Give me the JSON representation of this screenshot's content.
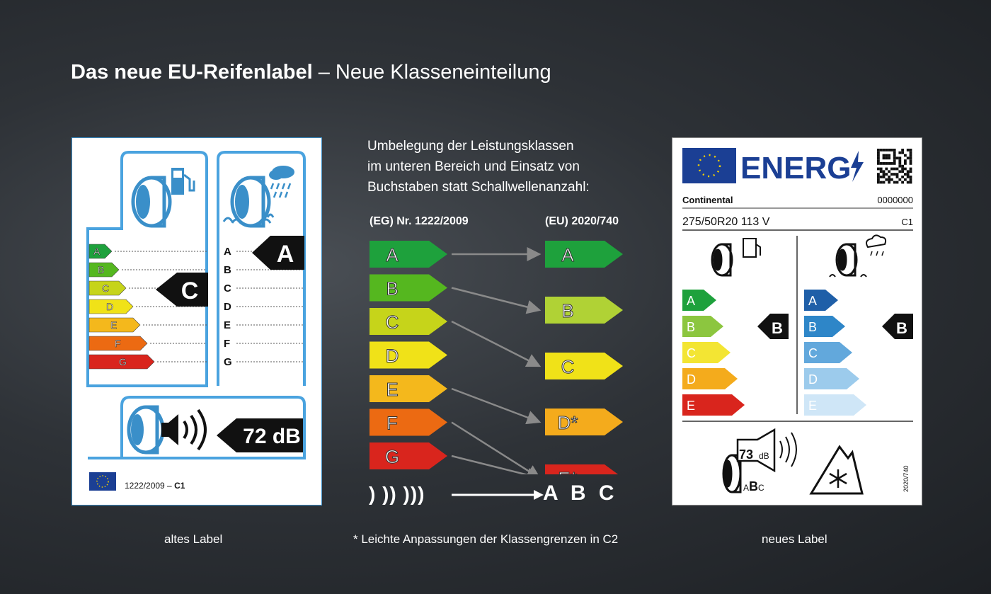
{
  "title": {
    "bold": "Das neue EU-Reifenlabel",
    "rest": " – Neue Klasseneinteilung"
  },
  "description": {
    "line1": "Umbelegung der Leistungsklassen",
    "line2": "im unteren Bereich und Einsatz von",
    "line3": "Buchstaben statt Schallwellenanzahl:"
  },
  "old_regulation": "(EG) Nr. 1222/2009",
  "new_regulation": "(EU) 2020/740",
  "old_classes": [
    "A",
    "B",
    "C",
    "D",
    "E",
    "F",
    "G"
  ],
  "new_classes": [
    "A",
    "B",
    "C",
    "D*",
    "E*"
  ],
  "old_class_colors": [
    "#1ea13c",
    "#55b71f",
    "#c6d41a",
    "#f0e218",
    "#f4b81c",
    "#ec6a12",
    "#d9251d"
  ],
  "new_class_colors": [
    "#1ea13c",
    "#b0d235",
    "#f0e218",
    "#f4ab1c",
    "#d9251d"
  ],
  "mapping": [
    [
      0,
      0
    ],
    [
      1,
      1
    ],
    [
      2,
      2
    ],
    [
      4,
      3
    ],
    [
      5,
      4
    ],
    [
      6,
      4
    ]
  ],
  "noise_legend": {
    "waves": ")  ))  )))",
    "letters": "A B C"
  },
  "footnote": "* Leichte Anpassungen der  Klassengrenzen in C2",
  "captions": {
    "old": "altes Label",
    "new": "neues Label"
  },
  "old_label": {
    "fuel_rating": "C",
    "wet_rating": "A",
    "noise": "72 dB",
    "regulation": "1222/2009 – C1",
    "regulation_plain": "1222/2009 – ",
    "regulation_bold": "C1"
  },
  "new_label": {
    "energy_text": "ENERG",
    "brand": "Continental",
    "code": "0000000",
    "size": "275/50R20 113 V",
    "tyre_class": "C1",
    "fuel_classes": [
      "A",
      "B",
      "C",
      "D",
      "E"
    ],
    "fuel_colors": [
      "#1ea13c",
      "#8cc63f",
      "#f3e533",
      "#f4ab1c",
      "#d9251d"
    ],
    "wet_classes": [
      "A",
      "B",
      "C",
      "D",
      "E"
    ],
    "wet_colors": [
      "#1f5fa8",
      "#2e86c8",
      "#62a8dc",
      "#9ccbec",
      "#cfe6f7"
    ],
    "fuel_rating": "B",
    "wet_rating": "B",
    "noise_value": "73",
    "noise_unit": "dB",
    "noise_class_a": "A",
    "noise_class_b": "B",
    "noise_class_c": "C",
    "side_text": "2020/740"
  }
}
